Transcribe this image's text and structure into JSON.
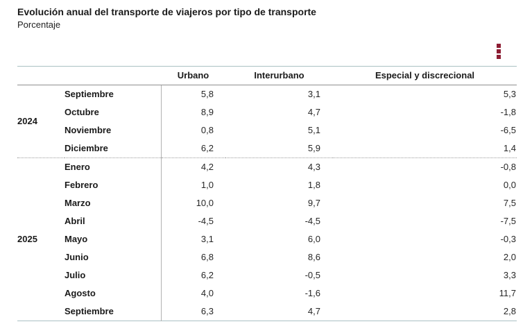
{
  "header": {
    "title": "Evolución anual del transporte de viajeros por tipo de transporte",
    "subtitle": "Porcentaje"
  },
  "toolbar": {
    "menu_icon": "kebab-menu",
    "accent_color": "#8d1d33"
  },
  "colors": {
    "table_outer_border": "#a9c0c3",
    "header_underline": "#8f8f8f",
    "column_divider": "#b1b1b1",
    "text": "#262626"
  },
  "chart_data": {
    "type": "table",
    "title": "Evolución anual del transporte de viajeros por tipo de transporte",
    "unit": "Porcentaje",
    "columns": [
      "Urbano",
      "Interurbano",
      "Especial y discrecional"
    ],
    "groups": [
      {
        "year": "2024",
        "rows": [
          {
            "month": "Septiembre",
            "values": [
              "5,8",
              "3,1",
              "5,3"
            ]
          },
          {
            "month": "Octubre",
            "values": [
              "8,9",
              "4,7",
              "-1,8"
            ]
          },
          {
            "month": "Noviembre",
            "values": [
              "0,8",
              "5,1",
              "-6,5"
            ]
          },
          {
            "month": "Diciembre",
            "values": [
              "6,2",
              "5,9",
              "1,4"
            ]
          }
        ]
      },
      {
        "year": "2025",
        "rows": [
          {
            "month": "Enero",
            "values": [
              "4,2",
              "4,3",
              "-0,8"
            ]
          },
          {
            "month": "Febrero",
            "values": [
              "1,0",
              "1,8",
              "0,0"
            ]
          },
          {
            "month": "Marzo",
            "values": [
              "10,0",
              "9,7",
              "7,5"
            ]
          },
          {
            "month": "Abril",
            "values": [
              "-4,5",
              "-4,5",
              "-7,5"
            ]
          },
          {
            "month": "Mayo",
            "values": [
              "3,1",
              "6,0",
              "-0,3"
            ]
          },
          {
            "month": "Junio",
            "values": [
              "6,8",
              "8,6",
              "2,0"
            ]
          },
          {
            "month": "Julio",
            "values": [
              "6,2",
              "-0,5",
              "3,3"
            ]
          },
          {
            "month": "Agosto",
            "values": [
              "4,0",
              "-1,6",
              "11,7"
            ]
          },
          {
            "month": "Septiembre",
            "values": [
              "6,3",
              "4,7",
              "2,8"
            ]
          }
        ]
      }
    ]
  }
}
